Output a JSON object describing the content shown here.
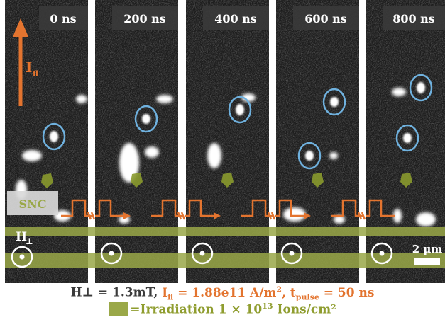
{
  "panels": [
    {
      "time_label": "0 ns"
    },
    {
      "time_label": "200 ns"
    },
    {
      "time_label": "400 ns"
    },
    {
      "time_label": "600 ns"
    },
    {
      "time_label": "800 ns"
    }
  ],
  "labels": {
    "current_symbol": "I",
    "current_sub": "fl",
    "snc": "SNC",
    "field_symbol": "H",
    "field_sub": "⊥",
    "scale_bar": "2 μm"
  },
  "caption": {
    "field": "H⊥ = 1.3mT,",
    "current_main": "I",
    "current_sub": "fl",
    "current_value": " = 1.88e11 A/m",
    "current_unit_sup": "2",
    "pulse_main": ", t",
    "pulse_sub": "pulse",
    "pulse_value": "= 50 ns",
    "legend_text": "=Irradiation 1 × 10",
    "legend_exp": "13",
    "legend_unit": " Ions/cm²"
  },
  "colors": {
    "current": "#e3742f",
    "irradiation": "#9aa848",
    "circle": "#6fb1de",
    "snc_box": "#d9d9d9"
  }
}
